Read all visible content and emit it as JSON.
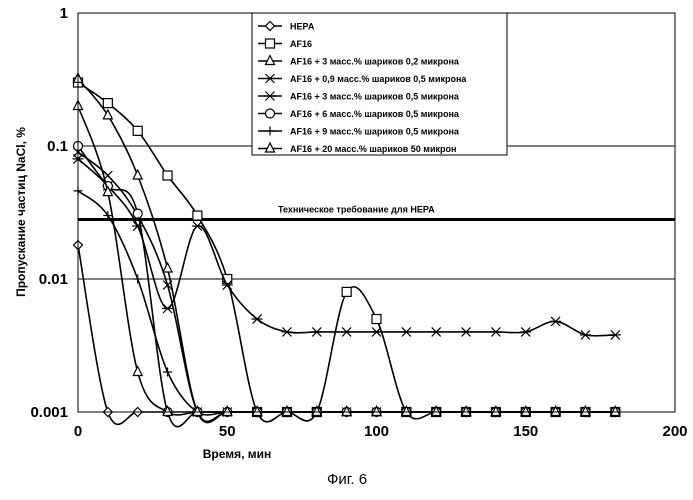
{
  "chart_data": {
    "type": "line",
    "yscale": "log",
    "xlim": [
      0,
      200
    ],
    "ylim": [
      0.001,
      1
    ],
    "xticks": [
      "0",
      "50",
      "100",
      "150",
      "200"
    ],
    "yticks": [
      "0.001",
      "0.01",
      "0.1",
      "1"
    ],
    "xlabel": "Время, мин",
    "ylabel": "Пропускание частиц NaCl, %",
    "caption": "Фиг. 6",
    "grid": "horizontal",
    "legend_position": "top-right",
    "reference_line": {
      "label": "Техническое требование для HEPA",
      "value": 0.028
    },
    "series": [
      {
        "name": "HEPA",
        "marker": "diamond",
        "x": [
          0,
          10,
          20,
          30,
          40,
          50,
          60,
          70,
          80,
          90,
          100,
          110,
          120,
          130,
          140,
          150,
          160,
          170,
          180
        ],
        "y": [
          0.018,
          0.001,
          0.001,
          0.001,
          0.001,
          0.001,
          0.001,
          0.001,
          0.001,
          0.001,
          0.001,
          0.001,
          0.001,
          0.001,
          0.001,
          0.001,
          0.001,
          0.001,
          0.001
        ]
      },
      {
        "name": "AF16",
        "marker": "square",
        "x": [
          0,
          10,
          20,
          30,
          40,
          50,
          60,
          70,
          80,
          90,
          100,
          110,
          120,
          130,
          140,
          150,
          160,
          170,
          180
        ],
        "y": [
          0.3,
          0.21,
          0.13,
          0.06,
          0.03,
          0.01,
          0.001,
          0.001,
          0.001,
          0.008,
          0.005,
          0.001,
          0.001,
          0.001,
          0.001,
          0.001,
          0.001,
          0.001,
          0.001
        ]
      },
      {
        "name": "AF16 + 3 масс.% шариков 0,2 микрона",
        "marker": "triangle",
        "x": [
          0,
          10,
          20,
          30,
          40,
          50,
          60,
          70,
          80,
          90,
          100,
          110,
          120,
          130,
          140,
          150,
          160,
          170,
          180
        ],
        "y": [
          0.32,
          0.17,
          0.06,
          0.012,
          0.001,
          0.001,
          0.001,
          0.001,
          0.001,
          0.001,
          0.001,
          0.001,
          0.001,
          0.001,
          0.001,
          0.001,
          0.001,
          0.001,
          0.001
        ]
      },
      {
        "name": "AF16 + 0,9 масс.% шариков 0,5 микрона",
        "marker": "x",
        "x": [
          0,
          10,
          20,
          30,
          40,
          50,
          60,
          70,
          80,
          90,
          100,
          110,
          120,
          130,
          140,
          150,
          160,
          170,
          180
        ],
        "y": [
          0.09,
          0.06,
          0.03,
          0.009,
          0.001,
          0.001,
          0.001,
          0.001,
          0.001,
          0.001,
          0.001,
          0.001,
          0.001,
          0.001,
          0.001,
          0.001,
          0.001,
          0.001,
          0.001
        ]
      },
      {
        "name": "AF16 + 3 масс.% шариков 0,5 микрона",
        "marker": "asterisk",
        "x": [
          0,
          10,
          20,
          30,
          40,
          50,
          60,
          70,
          80,
          90,
          100,
          110,
          120,
          130,
          140,
          150,
          160,
          170,
          180
        ],
        "y": [
          0.08,
          0.05,
          0.025,
          0.006,
          0.025,
          0.009,
          0.005,
          0.004,
          0.004,
          0.004,
          0.004,
          0.004,
          0.004,
          0.004,
          0.004,
          0.004,
          0.0048,
          0.0038,
          0.0038
        ]
      },
      {
        "name": "AF16 + 6 масс.% шариков 0,5 микрона",
        "marker": "circle",
        "x": [
          0,
          10,
          20,
          30,
          40,
          50,
          60,
          70,
          80,
          90,
          100,
          110,
          120,
          130,
          140,
          150,
          160,
          170,
          180
        ],
        "y": [
          0.1,
          0.05,
          0.031,
          0.001,
          0.001,
          0.001,
          0.001,
          0.001,
          0.001,
          0.001,
          0.001,
          0.001,
          0.001,
          0.001,
          0.001,
          0.001,
          0.001,
          0.001,
          0.001
        ]
      },
      {
        "name": "AF16 + 9 масс.% шариков 0,5 микрона",
        "marker": "plus",
        "x": [
          0,
          10,
          20,
          30,
          40,
          50,
          60,
          70,
          80,
          90,
          100,
          110,
          120,
          130,
          140,
          150,
          160,
          170,
          180
        ],
        "y": [
          0.046,
          0.03,
          0.01,
          0.002,
          0.001,
          0.001,
          0.001,
          0.001,
          0.001,
          0.001,
          0.001,
          0.001,
          0.001,
          0.001,
          0.001,
          0.001,
          0.001,
          0.001,
          0.001
        ]
      },
      {
        "name": "AF16 + 20 масс.% шариков 50 микрон",
        "marker": "triangle",
        "x": [
          0,
          10,
          20,
          30,
          40,
          50,
          60,
          70,
          80,
          90,
          100,
          110,
          120,
          130,
          140,
          150,
          160,
          170,
          180
        ],
        "y": [
          0.2,
          0.045,
          0.002,
          0.001,
          0.001,
          0.001,
          0.001,
          0.001,
          0.001,
          0.001,
          0.001,
          0.001,
          0.001,
          0.001,
          0.001,
          0.001,
          0.001,
          0.001,
          0.001
        ]
      }
    ]
  }
}
